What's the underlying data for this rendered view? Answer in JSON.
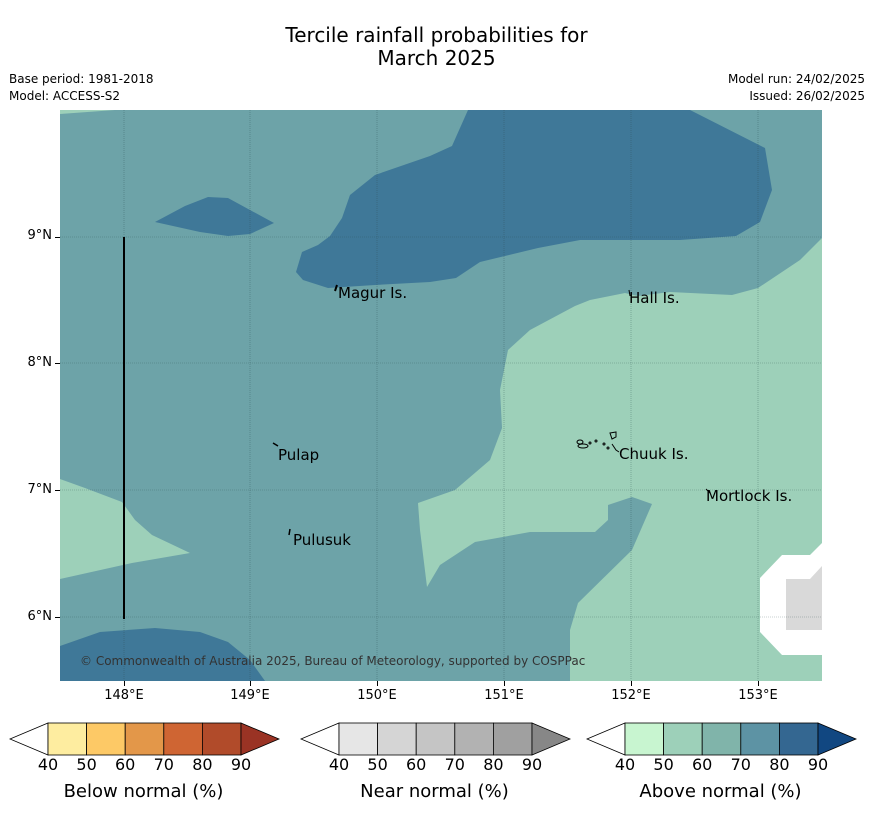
{
  "header": {
    "title_line1": "Tercile rainfall probabilities for",
    "title_line2": "March 2025",
    "base_period": "Base period: 1981-2018",
    "model": "Model: ACCESS-S2",
    "model_run": "Model run: 24/02/2025",
    "issued": "Issued: 26/02/2025"
  },
  "map": {
    "lat_labels": [
      "9°N",
      "8°N",
      "7°N",
      "6°N"
    ],
    "lon_labels": [
      "148°E",
      "149°E",
      "150°E",
      "151°E",
      "152°E",
      "153°E"
    ],
    "islands": [
      "Magur Is.",
      "Hall Is.",
      "Pulap",
      "Chuuk Is.",
      "Mortlock Is.",
      "Pulusuk"
    ],
    "copyright": "© Commonwealth of Australia 2025, Bureau of Meteorology, supported by COSPPac",
    "colors": {
      "above_50": "#9dd0b9",
      "above_70": "#6da3a8",
      "above_80": "#3f7898",
      "no_data": "#d9d9d9"
    }
  },
  "legends": [
    {
      "title": "Below normal (%)",
      "ticks": [
        "40",
        "50",
        "60",
        "70",
        "80",
        "90"
      ],
      "colors": [
        "#ffffff",
        "#feeda0",
        "#fdc966",
        "#e39749",
        "#cf6533",
        "#b14b2a",
        "#9a3324"
      ]
    },
    {
      "title": "Near normal (%)",
      "ticks": [
        "40",
        "50",
        "60",
        "70",
        "80",
        "90"
      ],
      "colors": [
        "#ffffff",
        "#e6e6e6",
        "#d5d5d5",
        "#c5c5c5",
        "#b2b2b2",
        "#a0a0a0",
        "#878787"
      ]
    },
    {
      "title": "Above normal (%)",
      "ticks": [
        "40",
        "50",
        "60",
        "70",
        "80",
        "90"
      ],
      "colors": [
        "#ffffff",
        "#c8f5d0",
        "#9dd0b9",
        "#80b4aa",
        "#5d93a4",
        "#346791",
        "#114781"
      ]
    }
  ]
}
